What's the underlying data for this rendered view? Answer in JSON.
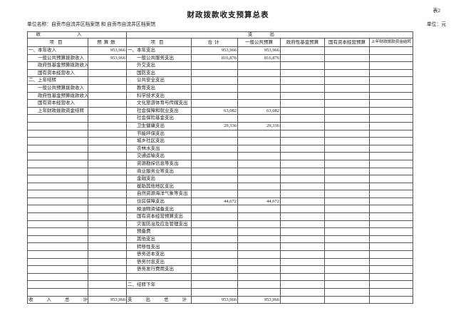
{
  "page": {
    "sheet_note": "表2",
    "title": "财政拨款收支预算总表",
    "unit_name": "单位名称：自贡市自流井区档案馆 和 自贡市自流井区档案馆",
    "unit_label": "单位：元"
  },
  "table": {
    "section_headers": {
      "income": "收入",
      "expense": "支出"
    },
    "columns": {
      "income_item": "项目",
      "income_budget": "预算数",
      "expense_item": "项目",
      "total": "合计",
      "general_public": "一般公共预算",
      "gov_fund": "政府性基金预算",
      "state_capital": "国有资本经营预算",
      "prev_carryover": "上年财政拨款资金结转"
    },
    "rows": [
      {
        "in": "一、本年收入",
        "inInd": 0,
        "inVal": "953,966",
        "ex": "一、本年支出",
        "exInd": 0,
        "total": "953,966",
        "pub": "953,966",
        "fund": "",
        "cap": "",
        "prev": ""
      },
      {
        "in": "一般公共预算拨款收入",
        "inInd": 1,
        "inVal": "953,966",
        "ex": "一般公共服务支出",
        "exInd": 1,
        "total": "816,876",
        "pub": "816,876",
        "fund": "",
        "cap": "",
        "prev": ""
      },
      {
        "in": "政府性基金预算拨款收入",
        "inInd": 1,
        "inVal": "",
        "ex": "外交支出",
        "exInd": 1,
        "total": "",
        "pub": "",
        "fund": "",
        "cap": "",
        "prev": ""
      },
      {
        "in": "国有资本经营收入",
        "inInd": 1,
        "inVal": "",
        "ex": "国防支出",
        "exInd": 1,
        "total": "",
        "pub": "",
        "fund": "",
        "cap": "",
        "prev": ""
      },
      {
        "in": "二、上年结转",
        "inInd": 0,
        "inVal": "",
        "ex": "公共安全支出",
        "exInd": 1,
        "total": "",
        "pub": "",
        "fund": "",
        "cap": "",
        "prev": ""
      },
      {
        "in": "一般公共预算拨款收入",
        "inInd": 1,
        "inVal": "",
        "ex": "教育支出",
        "exInd": 1,
        "total": "",
        "pub": "",
        "fund": "",
        "cap": "",
        "prev": ""
      },
      {
        "in": "政府性基金预算拨款收入",
        "inInd": 1,
        "inVal": "",
        "ex": "科学技术支出",
        "exInd": 1,
        "total": "",
        "pub": "",
        "fund": "",
        "cap": "",
        "prev": ""
      },
      {
        "in": "国有资本经营收入",
        "inInd": 1,
        "inVal": "",
        "ex": "文化旅游体育与传媒支出",
        "exInd": 1,
        "total": "",
        "pub": "",
        "fund": "",
        "cap": "",
        "prev": ""
      },
      {
        "in": "上年财政拨款资金结转",
        "inInd": 1,
        "inVal": "",
        "ex": "社会保障和就业支出",
        "exInd": 1,
        "total": "63,082",
        "pub": "63,082",
        "fund": "",
        "cap": "",
        "prev": ""
      },
      {
        "in": "",
        "inInd": 0,
        "inVal": "",
        "ex": "社会保险基金支出",
        "exInd": 1,
        "total": "",
        "pub": "",
        "fund": "",
        "cap": "",
        "prev": ""
      },
      {
        "in": "",
        "inInd": 0,
        "inVal": "",
        "ex": "卫生健康支出",
        "exInd": 1,
        "total": "29,336",
        "pub": "29,336",
        "fund": "",
        "cap": "",
        "prev": ""
      },
      {
        "in": "",
        "inInd": 0,
        "inVal": "",
        "ex": "节能环保支出",
        "exInd": 1,
        "total": "",
        "pub": "",
        "fund": "",
        "cap": "",
        "prev": ""
      },
      {
        "in": "",
        "inInd": 0,
        "inVal": "",
        "ex": "城乡社区支出",
        "exInd": 1,
        "total": "",
        "pub": "",
        "fund": "",
        "cap": "",
        "prev": ""
      },
      {
        "in": "",
        "inInd": 0,
        "inVal": "",
        "ex": "农林水支出",
        "exInd": 1,
        "total": "",
        "pub": "",
        "fund": "",
        "cap": "",
        "prev": ""
      },
      {
        "in": "",
        "inInd": 0,
        "inVal": "",
        "ex": "交通运输支出",
        "exInd": 1,
        "total": "",
        "pub": "",
        "fund": "",
        "cap": "",
        "prev": ""
      },
      {
        "in": "",
        "inInd": 0,
        "inVal": "",
        "ex": "资源勘探信息等支出",
        "exInd": 1,
        "total": "",
        "pub": "",
        "fund": "",
        "cap": "",
        "prev": ""
      },
      {
        "in": "",
        "inInd": 0,
        "inVal": "",
        "ex": "商业服务业等支出",
        "exInd": 1,
        "total": "",
        "pub": "",
        "fund": "",
        "cap": "",
        "prev": ""
      },
      {
        "in": "",
        "inInd": 0,
        "inVal": "",
        "ex": "金融支出",
        "exInd": 1,
        "total": "",
        "pub": "",
        "fund": "",
        "cap": "",
        "prev": ""
      },
      {
        "in": "",
        "inInd": 0,
        "inVal": "",
        "ex": "援助其他地区支出",
        "exInd": 1,
        "total": "",
        "pub": "",
        "fund": "",
        "cap": "",
        "prev": ""
      },
      {
        "in": "",
        "inInd": 0,
        "inVal": "",
        "ex": "自然资源海洋气象等支出",
        "exInd": 1,
        "total": "",
        "pub": "",
        "fund": "",
        "cap": "",
        "prev": ""
      },
      {
        "in": "",
        "inInd": 0,
        "inVal": "",
        "ex": "住房保障支出",
        "exInd": 1,
        "total": "44,672",
        "pub": "44,672",
        "fund": "",
        "cap": "",
        "prev": ""
      },
      {
        "in": "",
        "inInd": 0,
        "inVal": "",
        "ex": "粮油物资储备支出",
        "exInd": 1,
        "total": "",
        "pub": "",
        "fund": "",
        "cap": "",
        "prev": ""
      },
      {
        "in": "",
        "inInd": 0,
        "inVal": "",
        "ex": "国有资本经营预算支出",
        "exInd": 1,
        "total": "",
        "pub": "",
        "fund": "",
        "cap": "",
        "prev": ""
      },
      {
        "in": "",
        "inInd": 0,
        "inVal": "",
        "ex": "灾害防治及应急管理支出",
        "exInd": 1,
        "total": "",
        "pub": "",
        "fund": "",
        "cap": "",
        "prev": ""
      },
      {
        "in": "",
        "inInd": 0,
        "inVal": "",
        "ex": "预备费",
        "exInd": 1,
        "total": "",
        "pub": "",
        "fund": "",
        "cap": "",
        "prev": ""
      },
      {
        "in": "",
        "inInd": 0,
        "inVal": "",
        "ex": "其他支出",
        "exInd": 1,
        "total": "",
        "pub": "",
        "fund": "",
        "cap": "",
        "prev": ""
      },
      {
        "in": "",
        "inInd": 0,
        "inVal": "",
        "ex": "转移性支出",
        "exInd": 1,
        "total": "",
        "pub": "",
        "fund": "",
        "cap": "",
        "prev": ""
      },
      {
        "in": "",
        "inInd": 0,
        "inVal": "",
        "ex": "债务还本支出",
        "exInd": 1,
        "total": "",
        "pub": "",
        "fund": "",
        "cap": "",
        "prev": ""
      },
      {
        "in": "",
        "inInd": 0,
        "inVal": "",
        "ex": "债务付息支出",
        "exInd": 1,
        "total": "",
        "pub": "",
        "fund": "",
        "cap": "",
        "prev": ""
      },
      {
        "in": "",
        "inInd": 0,
        "inVal": "",
        "ex": "债务发行费用支出",
        "exInd": 1,
        "total": "",
        "pub": "",
        "fund": "",
        "cap": "",
        "prev": ""
      },
      {
        "in": "",
        "inInd": 0,
        "inVal": "",
        "ex": "",
        "exInd": 0,
        "total": "",
        "pub": "",
        "fund": "",
        "cap": "",
        "prev": ""
      },
      {
        "in": "",
        "inInd": 0,
        "inVal": "",
        "ex": "二、结转下年",
        "exInd": 0,
        "total": "",
        "pub": "",
        "fund": "",
        "cap": "",
        "prev": ""
      },
      {
        "in": "",
        "inInd": 0,
        "inVal": "",
        "ex": "",
        "exInd": 0,
        "total": "",
        "pub": "",
        "fund": "",
        "cap": "",
        "prev": ""
      }
    ],
    "footer": {
      "income_label": "收入总计",
      "income_total": "953,966",
      "expense_label": "支出总计",
      "expense_total": "953,966",
      "expense_public_total": "953,966"
    }
  }
}
